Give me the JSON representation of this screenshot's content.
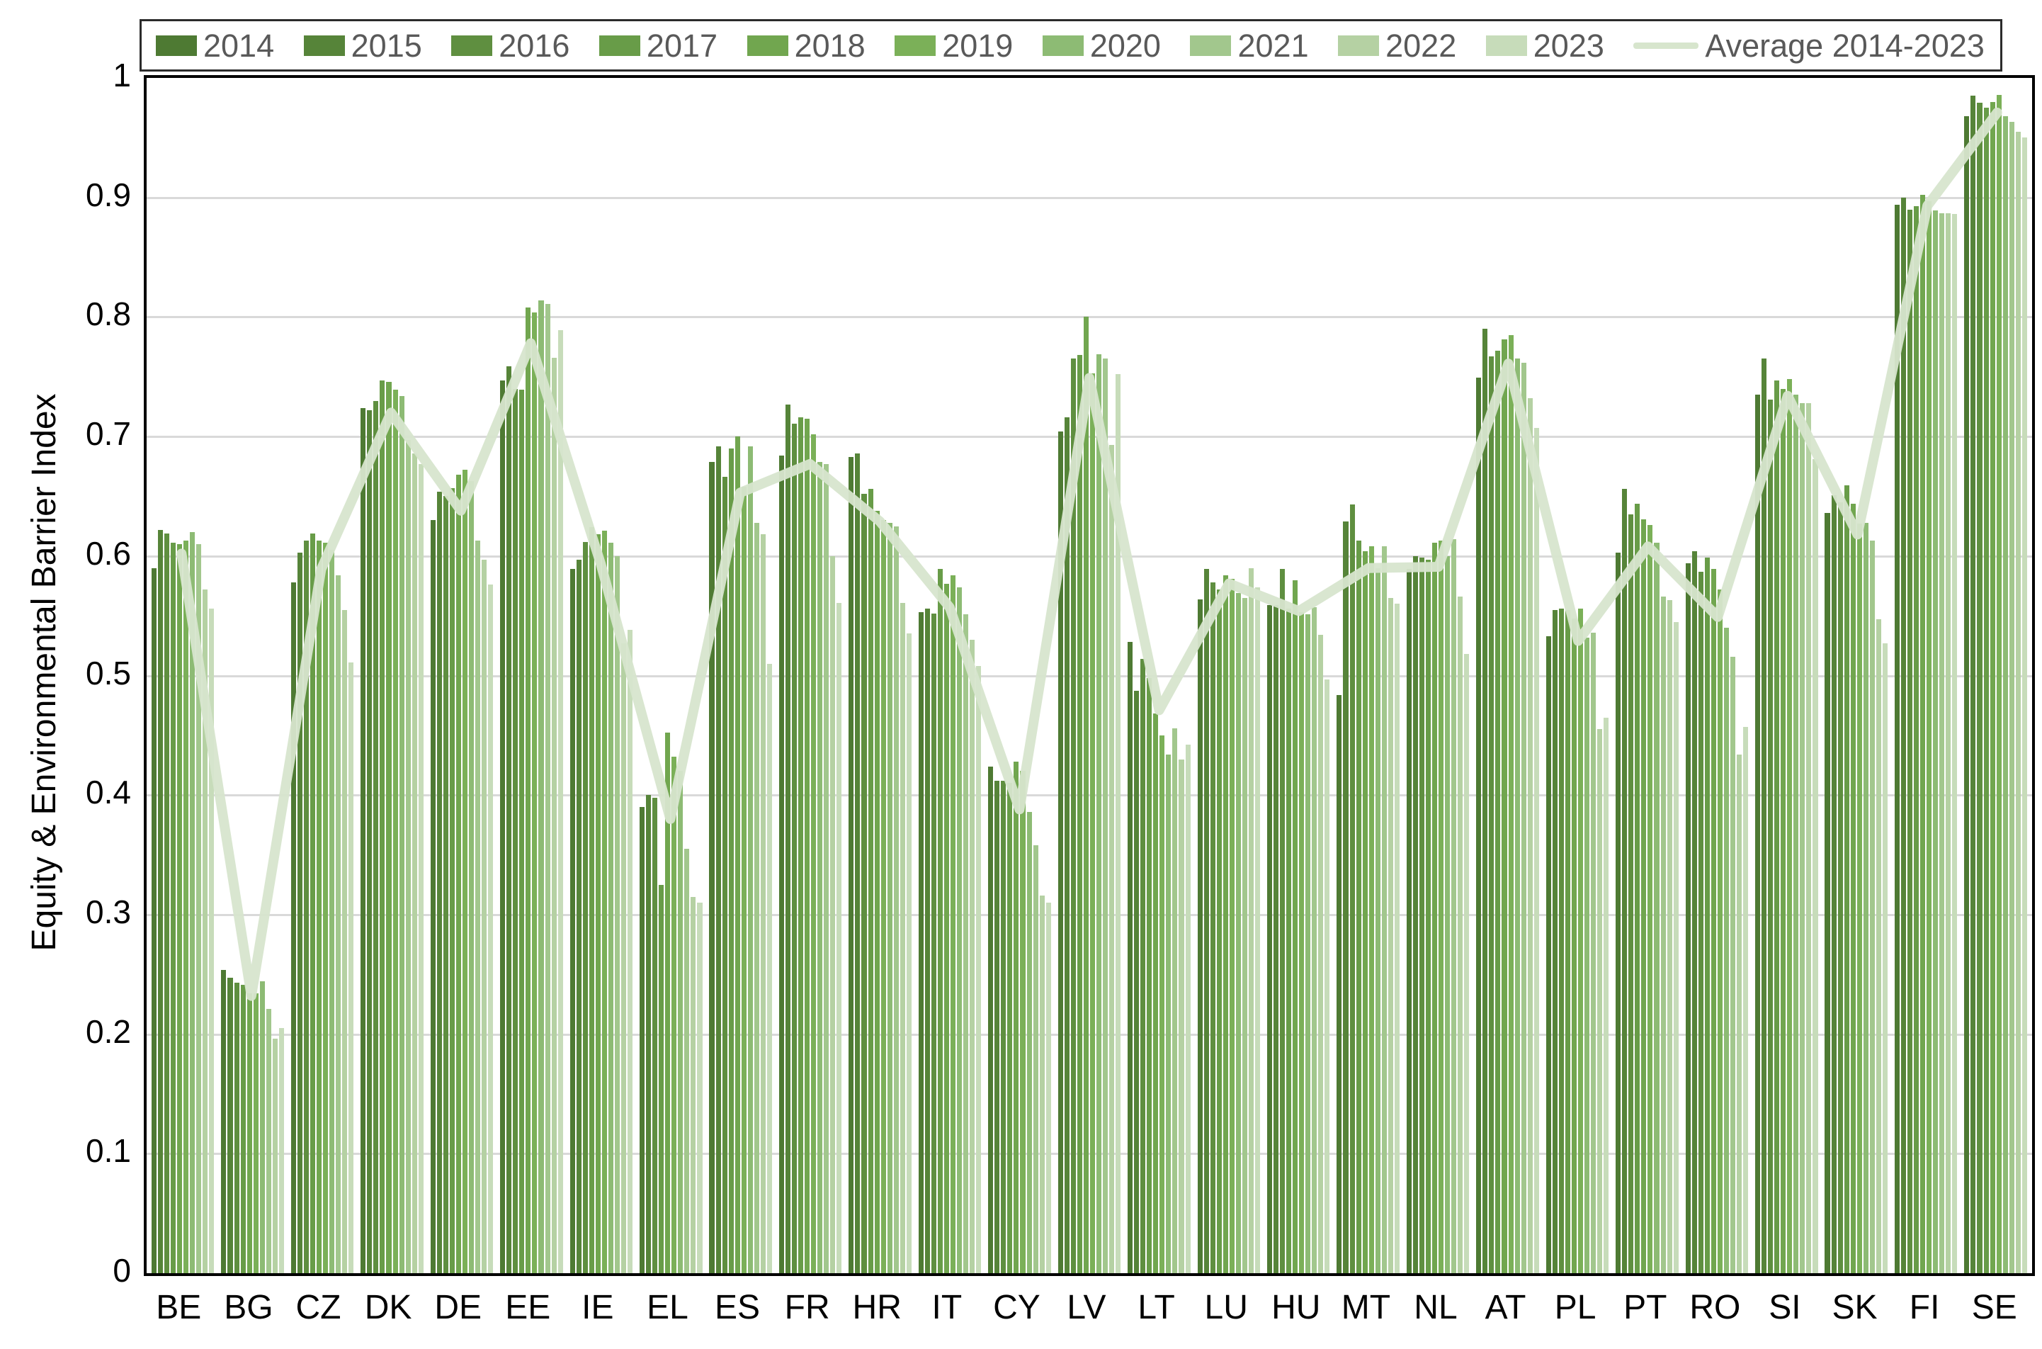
{
  "chart_data": {
    "type": "bar",
    "title": "",
    "xlabel": "",
    "ylabel": "Equity & Environmental Barrier Index",
    "ylim": [
      0,
      1
    ],
    "ytick_step": 0.1,
    "grid": "horizontal",
    "legend_position": "top",
    "categories": [
      "BE",
      "BG",
      "CZ",
      "DK",
      "DE",
      "EE",
      "IE",
      "EL",
      "ES",
      "FR",
      "HR",
      "IT",
      "CY",
      "LV",
      "LT",
      "LU",
      "HU",
      "MT",
      "NL",
      "AT",
      "PL",
      "PT",
      "RO",
      "SI",
      "SK",
      "FI",
      "SE"
    ],
    "series": [
      {
        "name": "2014",
        "color": "#4e7a33",
        "values": [
          0.59,
          0.254,
          0.578,
          0.724,
          0.63,
          0.747,
          0.589,
          0.39,
          0.679,
          0.684,
          0.683,
          0.553,
          0.424,
          0.704,
          0.528,
          0.564,
          0.559,
          0.484,
          0.589,
          0.749,
          0.533,
          0.603,
          0.594,
          0.735,
          0.636,
          0.894,
          0.968
        ]
      },
      {
        "name": "2015",
        "color": "#568439",
        "values": [
          0.622,
          0.247,
          0.603,
          0.722,
          0.654,
          0.759,
          0.597,
          0.4,
          0.692,
          0.727,
          0.686,
          0.556,
          0.412,
          0.716,
          0.487,
          0.589,
          0.559,
          0.629,
          0.6,
          0.79,
          0.555,
          0.656,
          0.604,
          0.765,
          0.651,
          0.9,
          0.985
        ]
      },
      {
        "name": "2016",
        "color": "#5f8f40",
        "values": [
          0.619,
          0.243,
          0.613,
          0.73,
          0.65,
          0.74,
          0.612,
          0.398,
          0.666,
          0.711,
          0.652,
          0.552,
          0.412,
          0.765,
          0.514,
          0.578,
          0.589,
          0.643,
          0.599,
          0.767,
          0.556,
          0.635,
          0.587,
          0.731,
          0.645,
          0.89,
          0.979
        ]
      },
      {
        "name": "2017",
        "color": "#689c48",
        "values": [
          0.611,
          0.241,
          0.619,
          0.747,
          0.657,
          0.739,
          0.624,
          0.325,
          0.69,
          0.716,
          0.656,
          0.589,
          0.41,
          0.768,
          0.498,
          0.572,
          0.556,
          0.613,
          0.597,
          0.772,
          0.555,
          0.644,
          0.599,
          0.747,
          0.659,
          0.893,
          0.975
        ]
      },
      {
        "name": "2018",
        "color": "#71a64f",
        "values": [
          0.61,
          0.234,
          0.613,
          0.746,
          0.668,
          0.808,
          0.618,
          0.452,
          0.7,
          0.715,
          0.638,
          0.577,
          0.428,
          0.8,
          0.468,
          0.584,
          0.58,
          0.604,
          0.611,
          0.781,
          0.548,
          0.631,
          0.589,
          0.74,
          0.644,
          0.902,
          0.98
        ]
      },
      {
        "name": "2019",
        "color": "#7bb058",
        "values": [
          0.613,
          0.234,
          0.611,
          0.739,
          0.672,
          0.804,
          0.621,
          0.432,
          0.658,
          0.702,
          0.63,
          0.584,
          0.42,
          0.753,
          0.45,
          0.581,
          0.553,
          0.608,
          0.613,
          0.785,
          0.556,
          0.626,
          0.572,
          0.748,
          0.627,
          0.897,
          0.986
        ]
      },
      {
        "name": "2020",
        "color": "#8dbb74",
        "values": [
          0.62,
          0.244,
          0.605,
          0.734,
          0.663,
          0.814,
          0.611,
          0.42,
          0.692,
          0.679,
          0.628,
          0.574,
          0.386,
          0.769,
          0.434,
          0.569,
          0.551,
          0.59,
          0.6,
          0.765,
          0.532,
          0.611,
          0.54,
          0.735,
          0.628,
          0.889,
          0.968
        ]
      },
      {
        "name": "2021",
        "color": "#a2c78d",
        "values": [
          0.61,
          0.221,
          0.584,
          0.697,
          0.613,
          0.811,
          0.6,
          0.355,
          0.628,
          0.677,
          0.625,
          0.551,
          0.358,
          0.765,
          0.456,
          0.565,
          0.557,
          0.608,
          0.614,
          0.762,
          0.536,
          0.566,
          0.516,
          0.728,
          0.613,
          0.887,
          0.963
        ]
      },
      {
        "name": "2022",
        "color": "#b5d1a3",
        "values": [
          0.572,
          0.196,
          0.555,
          0.686,
          0.597,
          0.766,
          0.527,
          0.315,
          0.618,
          0.6,
          0.561,
          0.53,
          0.316,
          0.693,
          0.43,
          0.59,
          0.534,
          0.565,
          0.566,
          0.732,
          0.455,
          0.563,
          0.434,
          0.728,
          0.547,
          0.887,
          0.955
        ]
      },
      {
        "name": "2023",
        "color": "#c7dcba",
        "values": [
          0.556,
          0.205,
          0.511,
          0.677,
          0.576,
          0.789,
          0.538,
          0.31,
          0.51,
          0.561,
          0.535,
          0.508,
          0.31,
          0.752,
          0.442,
          0.574,
          0.497,
          0.56,
          0.518,
          0.707,
          0.465,
          0.545,
          0.457,
          0.681,
          0.527,
          0.886,
          0.95
        ]
      }
    ],
    "average_series": {
      "name": "Average 2014-2023",
      "color": "#d7e5cd",
      "values": [
        0.602,
        0.232,
        0.589,
        0.72,
        0.638,
        0.778,
        0.594,
        0.38,
        0.653,
        0.677,
        0.629,
        0.557,
        0.388,
        0.749,
        0.471,
        0.577,
        0.554,
        0.59,
        0.591,
        0.761,
        0.529,
        0.608,
        0.549,
        0.734,
        0.618,
        0.893,
        0.971
      ]
    },
    "yticks": [
      "0",
      "0.1",
      "0.2",
      "0.3",
      "0.4",
      "0.5",
      "0.6",
      "0.7",
      "0.8",
      "0.9",
      "1"
    ]
  },
  "colors": {
    "grid": "#d9d9d9",
    "axis_frame": "#000000",
    "legend_border": "#2b2b2b",
    "legend_text": "#595959",
    "tick_text": "#000000"
  }
}
